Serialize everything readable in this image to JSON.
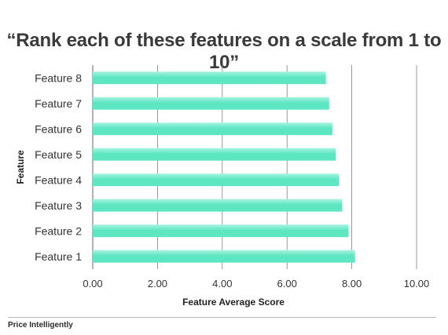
{
  "slide": {
    "title": "“Rank each of these features on a scale from 1 to 10”",
    "footer_brand": "Price Intelligently"
  },
  "colors": {
    "bar_fill": "#5ee6c3",
    "bar_highlight": "#a8f4e0",
    "grid": "#7f7f7f",
    "text": "#333333"
  },
  "chart_data": {
    "type": "bar",
    "orientation": "horizontal",
    "categories": [
      "Feature 1",
      "Feature 2",
      "Feature 3",
      "Feature 4",
      "Feature 5",
      "Feature 6",
      "Feature 7",
      "Feature 8"
    ],
    "values": [
      8.1,
      7.9,
      7.7,
      7.6,
      7.5,
      7.4,
      7.3,
      7.2
    ],
    "xlabel": "Feature Average Score",
    "ylabel": "Feature",
    "xlim": [
      0,
      10
    ],
    "xticks": [
      "0.00",
      "2.00",
      "4.00",
      "6.00",
      "8.00",
      "10.00"
    ],
    "grid": true,
    "legend": "none"
  }
}
